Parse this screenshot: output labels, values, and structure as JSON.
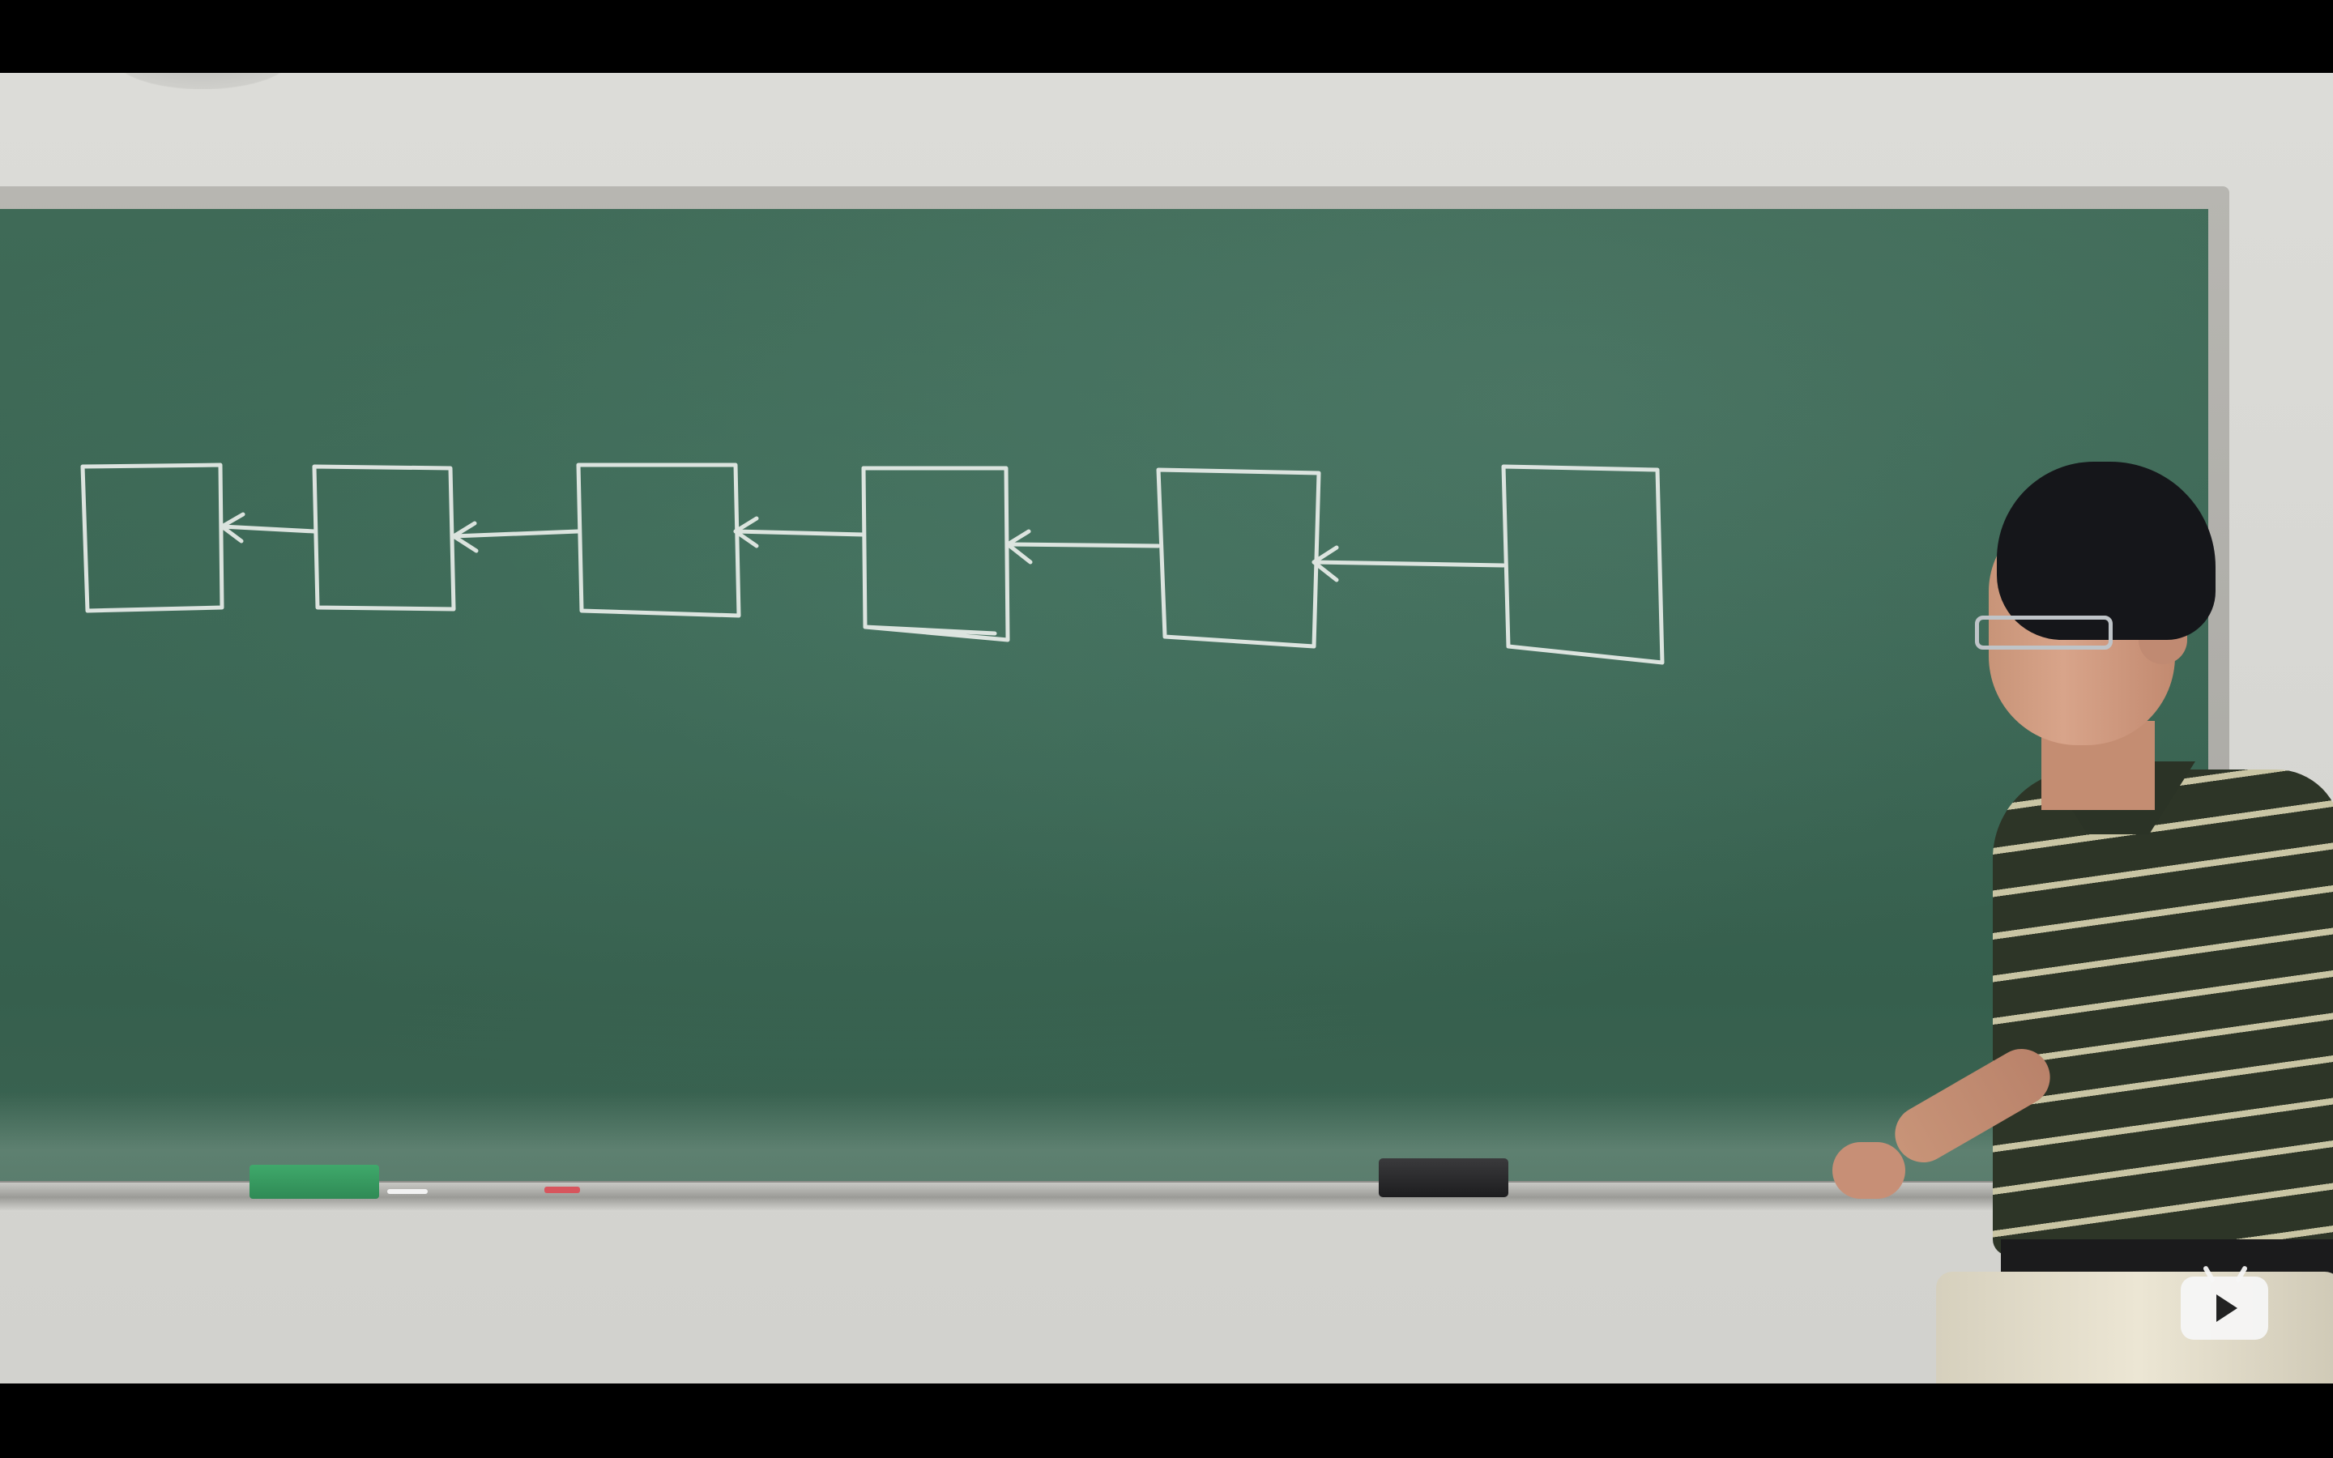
{
  "video": {
    "scene": "chalkboard-lecture",
    "boxes_count": 6,
    "colors": {
      "board": "#3c6754",
      "chalk": "#e9eeea",
      "wall": "#d8d8d4",
      "letterbox": "#000000",
      "overlay_icon": "#f5f5f5"
    }
  },
  "overlay": {
    "play_icon": "bilibili-play-icon"
  }
}
